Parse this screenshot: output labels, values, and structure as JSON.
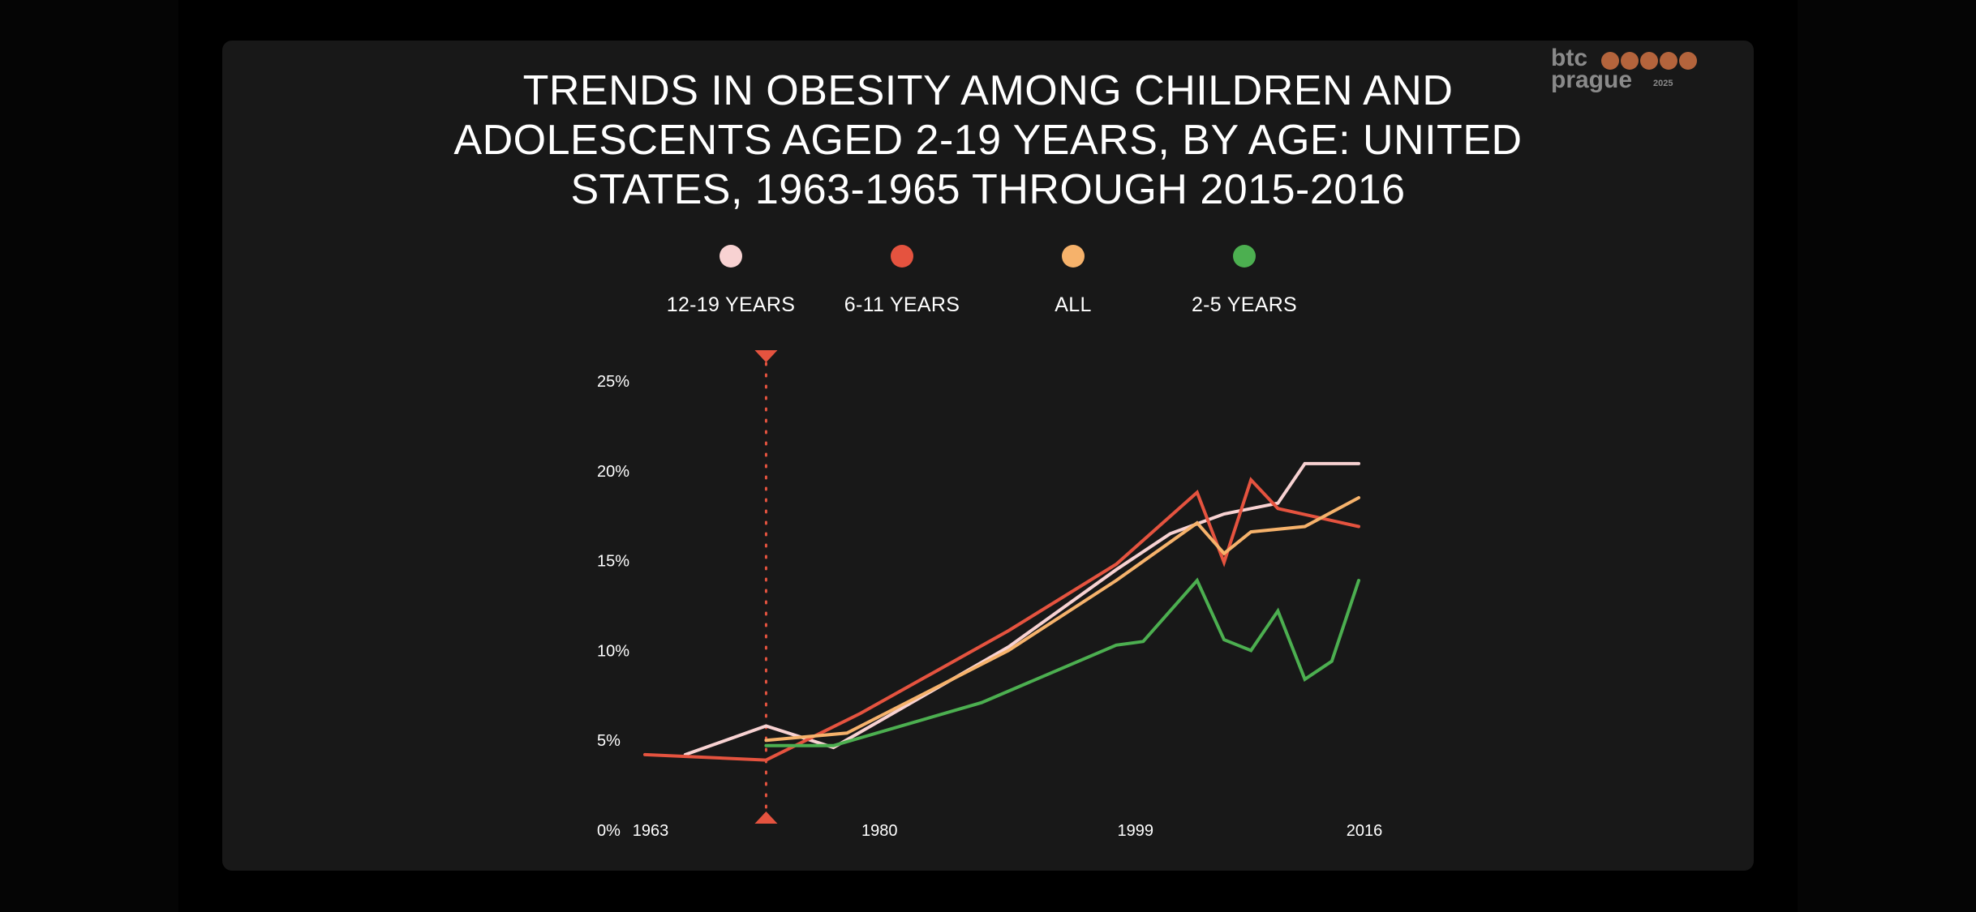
{
  "title": "TRENDS IN OBESITY AMONG CHILDREN AND ADOLESCENTS AGED 2-19 YEARS, BY AGE: UNITED STATES, 1963-1965 THROUGH 2015-2016",
  "logo": {
    "line1": "btc",
    "line2": "prague",
    "year": "2025",
    "dots_color": "#b4643c"
  },
  "colors": {
    "background": "#000000",
    "panel": "#181818",
    "marker": "#e5533f"
  },
  "chart_data": {
    "type": "line",
    "title": "TRENDS IN OBESITY AMONG CHILDREN AND ADOLESCENTS AGED 2-19 YEARS, BY AGE: UNITED STATES, 1963-1965 THROUGH 2015-2016",
    "xlabel": "",
    "ylabel": "",
    "xlim": [
      1963,
      2016
    ],
    "ylim": [
      0,
      25
    ],
    "x_ticks": [
      "1963",
      "1980",
      "1999",
      "2016"
    ],
    "y_ticks": [
      "0%",
      "5%",
      "10%",
      "15%",
      "20%",
      "25%"
    ],
    "legend_position": "top",
    "marker_year": 1972,
    "series": [
      {
        "name": "12-19 YEARS",
        "color": "#f8d2d2",
        "points": [
          [
            1966,
            4.2
          ],
          [
            1972,
            5.8
          ],
          [
            1977,
            4.6
          ],
          [
            1990,
            10.2
          ],
          [
            1998,
            14.5
          ],
          [
            2002,
            16.5
          ],
          [
            2006,
            17.6
          ],
          [
            2010,
            18.2
          ],
          [
            2012,
            20.4
          ],
          [
            2016,
            20.4
          ]
        ]
      },
      {
        "name": "6-11 YEARS",
        "color": "#e5533f",
        "points": [
          [
            1963,
            4.2
          ],
          [
            1972,
            3.9
          ],
          [
            1979,
            6.5
          ],
          [
            1990,
            11.1
          ],
          [
            1998,
            14.8
          ],
          [
            2004,
            18.8
          ],
          [
            2006,
            14.9
          ],
          [
            2008,
            19.5
          ],
          [
            2010,
            17.9
          ],
          [
            2016,
            16.9
          ]
        ]
      },
      {
        "name": "ALL",
        "color": "#f6b26b",
        "points": [
          [
            1972,
            5.0
          ],
          [
            1978,
            5.4
          ],
          [
            1990,
            10.0
          ],
          [
            1998,
            13.9
          ],
          [
            2004,
            17.1
          ],
          [
            2006,
            15.4
          ],
          [
            2008,
            16.6
          ],
          [
            2012,
            16.9
          ],
          [
            2016,
            18.5
          ]
        ]
      },
      {
        "name": "2-5 YEARS",
        "color": "#4caf50",
        "points": [
          [
            1972,
            4.7
          ],
          [
            1977,
            4.7
          ],
          [
            1988,
            7.1
          ],
          [
            1998,
            10.3
          ],
          [
            2000,
            10.5
          ],
          [
            2004,
            13.9
          ],
          [
            2006,
            10.6
          ],
          [
            2008,
            10.0
          ],
          [
            2010,
            12.2
          ],
          [
            2012,
            8.4
          ],
          [
            2014,
            9.4
          ],
          [
            2016,
            13.9
          ]
        ]
      }
    ]
  }
}
